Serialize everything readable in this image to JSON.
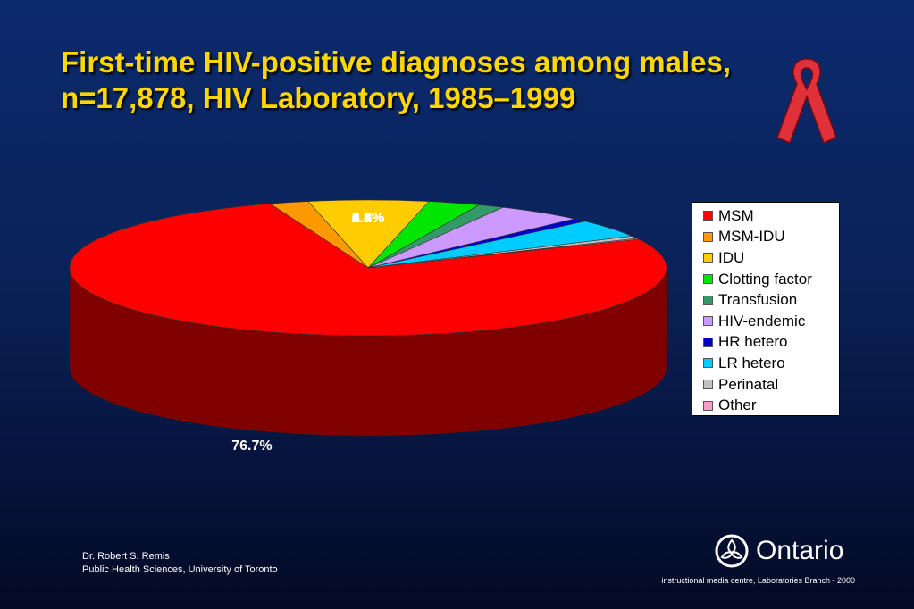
{
  "slide": {
    "title_line1": "First-time HIV-positive diagnoses among males,",
    "title_line2": "n=17,878, HIV Laboratory, 1985–1999",
    "author": "Dr. Robert S. Remis",
    "affiliation": "Public Health Sciences, University of Toronto",
    "brand": "Ontario",
    "credit": "instructional media centre, Laboratories Branch - 2000",
    "ribbon_icon": "red-ribbon-icon",
    "brand_icon": "trillium-icon",
    "title_color": "#ffd700",
    "background_color": "#0a2258"
  },
  "chart_data": {
    "type": "pie",
    "title": "",
    "legend_position": "right",
    "slices": [
      {
        "name": "MSM",
        "value": 76.7,
        "label": "76.7%",
        "color": "#ff0000"
      },
      {
        "name": "MSM-IDU",
        "value": 2.1,
        "label": "2.1%",
        "color": "#ff9900"
      },
      {
        "name": "IDU",
        "value": 6.5,
        "label": "6.5%",
        "color": "#ffcc00"
      },
      {
        "name": "Clotting factor",
        "value": 2.8,
        "label": "2.8%",
        "color": "#00e600"
      },
      {
        "name": "Transfusion",
        "value": 1.4,
        "label": "1.4%",
        "color": "#339966"
      },
      {
        "name": "HIV-endemic",
        "value": 4.7,
        "label": "4.7%",
        "color": "#cc99ff"
      },
      {
        "name": "HR hetero",
        "value": 0.8,
        "label": "0.8%",
        "color": "#0000cc"
      },
      {
        "name": "LR hetero",
        "value": 4.3,
        "label": "4.3%",
        "color": "#00ccff"
      },
      {
        "name": "Perinatal",
        "value": 0.6,
        "label": "0.6%",
        "color": "#c0c0c0"
      },
      {
        "name": "Other",
        "value": 0.2,
        "label": "0.2%",
        "color": "#ff99cc"
      }
    ]
  }
}
